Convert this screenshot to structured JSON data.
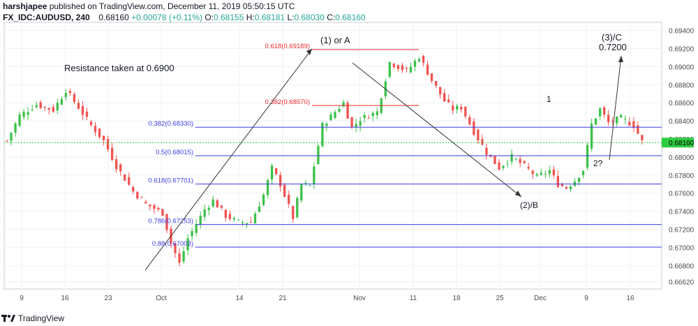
{
  "header": {
    "author": "harshjapee",
    "published_text": "published on TradingView.com, December 11, 2019 05:50:15 UTC",
    "symbol": "FX_IDC:AUDUSD, 240",
    "last": "0.68160",
    "change": "+0.00078 (+0.11%)",
    "o_label": "O:",
    "o_value": "0.68155",
    "h_label": "H:",
    "h_value": "0.68181",
    "l_label": "L:",
    "l_value": "0.68030",
    "c_label": "C:",
    "c_value": "0.68160"
  },
  "footer": {
    "brand": "TradingView",
    "logo_icon": "tradingview-logo-icon"
  },
  "colors": {
    "up": "#26a69a",
    "candle_up": "#3cc14a",
    "candle_down": "#ef5350",
    "fib_line": "#3b3be8",
    "fib_red": "#ef2b2b",
    "price_tag": "#2ecc40",
    "grid": "#eef0f3"
  },
  "chart_data": {
    "type": "candlestick",
    "ylim": [
      0.6654,
      0.6949
    ],
    "y_ticks": [
      "0.69400",
      "0.69200",
      "0.69000",
      "0.68800",
      "0.68600",
      "0.68400",
      "0.68200",
      "0.68000",
      "0.67800",
      "0.67600",
      "0.67400",
      "0.67200",
      "0.67000",
      "0.66800",
      "0.66620"
    ],
    "x_ticks": [
      "9",
      "16",
      "23",
      "Oct",
      "14",
      "21",
      "Nov",
      "11",
      "18",
      "25",
      "Dec",
      "9",
      "16"
    ],
    "last_price_label": "0.68160",
    "last_price": 0.6816,
    "fib_levels": [
      {
        "label": "0.618(0.69189)",
        "value": 0.69189,
        "color": "red"
      },
      {
        "label": "0.382(0.68570)",
        "value": 0.6857,
        "color": "red"
      },
      {
        "label": "0.382(0.68330)",
        "value": 0.6833,
        "color": "blue"
      },
      {
        "label": "0.5(0.68015)",
        "value": 0.68015,
        "color": "blue"
      },
      {
        "label": "0.618(0.67701)",
        "value": 0.67701,
        "color": "blue"
      },
      {
        "label": "0.786(0.67253)",
        "value": 0.67253,
        "color": "blue"
      },
      {
        "label": "0.88(0.67003)",
        "value": 0.67003,
        "color": "blue"
      }
    ],
    "annotations": {
      "resistance": "Resistance taken at 0.6900",
      "wave_1a": "(1) or A",
      "wave_2b": "(2)/B",
      "wave_3c": "(3)/C",
      "target": "0.7200",
      "wave_1": "1",
      "wave_2q": "2?"
    },
    "price_path": [
      [
        0,
        0.6818
      ],
      [
        3,
        0.6846
      ],
      [
        7,
        0.6858
      ],
      [
        11,
        0.6852
      ],
      [
        14,
        0.6874
      ],
      [
        17,
        0.6855
      ],
      [
        20,
        0.6835
      ],
      [
        23,
        0.6818
      ],
      [
        26,
        0.679
      ],
      [
        30,
        0.6762
      ],
      [
        33,
        0.6748
      ],
      [
        37,
        0.6738
      ],
      [
        39,
        0.6705
      ],
      [
        41,
        0.6682
      ],
      [
        43,
        0.671
      ],
      [
        47,
        0.6742
      ],
      [
        49,
        0.6752
      ],
      [
        52,
        0.6735
      ],
      [
        55,
        0.6728
      ],
      [
        58,
        0.6728
      ],
      [
        61,
        0.6758
      ],
      [
        63,
        0.6788
      ],
      [
        65,
        0.677
      ],
      [
        68,
        0.6733
      ],
      [
        70,
        0.677
      ],
      [
        72,
        0.6768
      ],
      [
        75,
        0.6835
      ],
      [
        80,
        0.686
      ],
      [
        82,
        0.6832
      ],
      [
        84,
        0.6842
      ],
      [
        88,
        0.685
      ],
      [
        91,
        0.6905
      ],
      [
        95,
        0.6895
      ],
      [
        98,
        0.6911
      ],
      [
        101,
        0.6885
      ],
      [
        104,
        0.6862
      ],
      [
        106,
        0.6853
      ],
      [
        108,
        0.6855
      ],
      [
        111,
        0.6828
      ],
      [
        114,
        0.6805
      ],
      [
        117,
        0.6788
      ],
      [
        120,
        0.68
      ],
      [
        123,
        0.679
      ],
      [
        126,
        0.6778
      ],
      [
        129,
        0.6785
      ],
      [
        131,
        0.677
      ],
      [
        133,
        0.6766
      ],
      [
        135,
        0.6774
      ],
      [
        137,
        0.6786
      ],
      [
        139,
        0.6836
      ],
      [
        141,
        0.6853
      ],
      [
        143,
        0.6838
      ],
      [
        146,
        0.6843
      ],
      [
        149,
        0.6835
      ],
      [
        151,
        0.6817
      ]
    ]
  }
}
